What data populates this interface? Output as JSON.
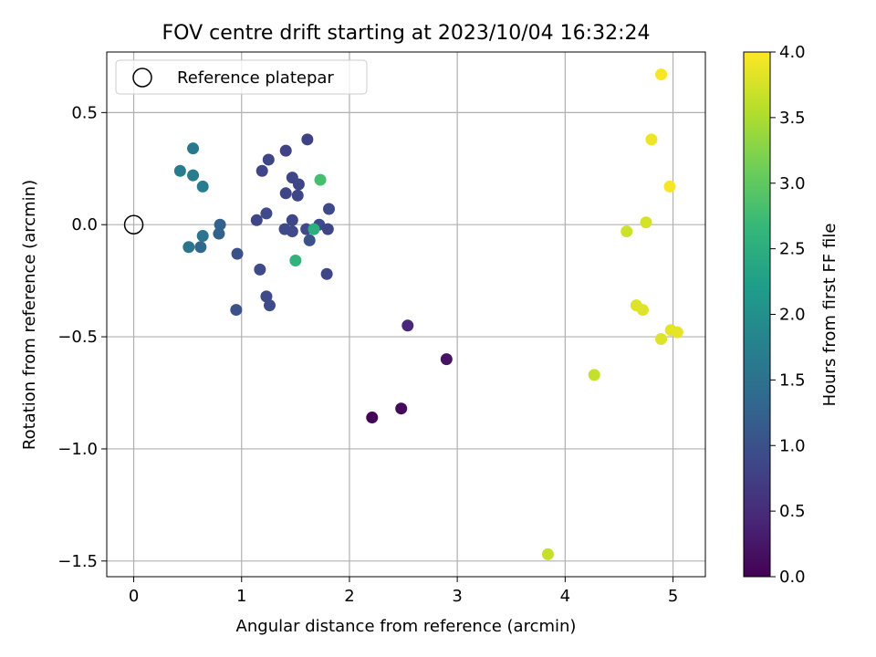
{
  "chart_data": {
    "type": "scatter",
    "title": "FOV centre drift starting at 2023/10/04 16:32:24",
    "xlabel": "Angular distance from reference (arcmin)",
    "ylabel": "Rotation from reference (arcmin)",
    "xlim": [
      -0.25,
      5.3
    ],
    "ylim": [
      -1.57,
      0.77
    ],
    "xticks": [
      0,
      1,
      2,
      3,
      4,
      5
    ],
    "xtick_labels": [
      "0",
      "1",
      "2",
      "3",
      "4",
      "5"
    ],
    "yticks": [
      -1.5,
      -1.0,
      -0.5,
      0.0,
      0.5
    ],
    "ytick_labels": [
      "−1.5",
      "−1.0",
      "−0.5",
      "0.0",
      "0.5"
    ],
    "grid": true,
    "legend": {
      "placement": "top-left",
      "entries": [
        "Reference platepar"
      ]
    },
    "reference_point": {
      "label": "Reference platepar",
      "x": 0.0,
      "y": 0.0
    },
    "colorbar": {
      "label": "Hours from first FF file",
      "colormap": "viridis",
      "range": [
        0.0,
        4.0
      ],
      "ticks": [
        0.0,
        0.5,
        1.0,
        1.5,
        2.0,
        2.5,
        3.0,
        3.5,
        4.0
      ],
      "tick_labels": [
        "0.0",
        "0.5",
        "1.0",
        "1.5",
        "2.0",
        "2.5",
        "3.0",
        "3.5",
        "4.0"
      ]
    },
    "points": [
      {
        "x": 2.21,
        "y": -0.86,
        "c": 0.05
      },
      {
        "x": 2.48,
        "y": -0.82,
        "c": 0.1
      },
      {
        "x": 2.9,
        "y": -0.6,
        "c": 0.2
      },
      {
        "x": 2.54,
        "y": -0.45,
        "c": 0.45
      },
      {
        "x": 1.61,
        "y": 0.38,
        "c": 0.8
      },
      {
        "x": 1.41,
        "y": 0.33,
        "c": 0.8
      },
      {
        "x": 1.25,
        "y": 0.29,
        "c": 0.85
      },
      {
        "x": 1.19,
        "y": 0.24,
        "c": 0.85
      },
      {
        "x": 1.47,
        "y": 0.21,
        "c": 0.85
      },
      {
        "x": 1.53,
        "y": 0.18,
        "c": 0.85
      },
      {
        "x": 1.41,
        "y": 0.14,
        "c": 0.85
      },
      {
        "x": 1.52,
        "y": 0.13,
        "c": 0.85
      },
      {
        "x": 1.81,
        "y": 0.07,
        "c": 0.9
      },
      {
        "x": 1.23,
        "y": 0.05,
        "c": 0.9
      },
      {
        "x": 1.14,
        "y": 0.02,
        "c": 0.85
      },
      {
        "x": 1.47,
        "y": 0.02,
        "c": 0.85
      },
      {
        "x": 1.72,
        "y": 0.0,
        "c": 0.9
      },
      {
        "x": 1.4,
        "y": -0.02,
        "c": 0.9
      },
      {
        "x": 1.47,
        "y": -0.03,
        "c": 0.9
      },
      {
        "x": 1.6,
        "y": -0.02,
        "c": 0.9
      },
      {
        "x": 1.8,
        "y": -0.02,
        "c": 0.85
      },
      {
        "x": 1.63,
        "y": -0.07,
        "c": 1.0
      },
      {
        "x": 0.96,
        "y": -0.13,
        "c": 1.0
      },
      {
        "x": 1.17,
        "y": -0.2,
        "c": 0.9
      },
      {
        "x": 1.79,
        "y": -0.22,
        "c": 0.85
      },
      {
        "x": 1.23,
        "y": -0.32,
        "c": 0.9
      },
      {
        "x": 1.26,
        "y": -0.36,
        "c": 0.9
      },
      {
        "x": 0.95,
        "y": -0.38,
        "c": 1.0
      },
      {
        "x": 0.8,
        "y": 0.0,
        "c": 1.25
      },
      {
        "x": 0.79,
        "y": -0.04,
        "c": 1.25
      },
      {
        "x": 0.62,
        "y": -0.1,
        "c": 1.35
      },
      {
        "x": 0.51,
        "y": -0.1,
        "c": 1.55
      },
      {
        "x": 0.64,
        "y": -0.05,
        "c": 1.55
      },
      {
        "x": 0.55,
        "y": 0.34,
        "c": 1.6
      },
      {
        "x": 0.43,
        "y": 0.24,
        "c": 1.65
      },
      {
        "x": 0.55,
        "y": 0.22,
        "c": 1.65
      },
      {
        "x": 0.64,
        "y": 0.17,
        "c": 1.65
      },
      {
        "x": 1.73,
        "y": 0.2,
        "c": 2.8
      },
      {
        "x": 1.67,
        "y": -0.02,
        "c": 2.5
      },
      {
        "x": 1.5,
        "y": -0.16,
        "c": 2.6
      },
      {
        "x": 3.84,
        "y": -1.47,
        "c": 3.65
      },
      {
        "x": 4.27,
        "y": -0.67,
        "c": 3.65
      },
      {
        "x": 4.57,
        "y": -0.03,
        "c": 3.7
      },
      {
        "x": 4.75,
        "y": 0.01,
        "c": 3.75
      },
      {
        "x": 4.66,
        "y": -0.36,
        "c": 3.8
      },
      {
        "x": 4.72,
        "y": -0.38,
        "c": 3.8
      },
      {
        "x": 4.89,
        "y": -0.51,
        "c": 3.8
      },
      {
        "x": 4.98,
        "y": -0.47,
        "c": 3.85
      },
      {
        "x": 5.04,
        "y": -0.48,
        "c": 3.85
      },
      {
        "x": 4.8,
        "y": 0.38,
        "c": 3.9
      },
      {
        "x": 4.97,
        "y": 0.17,
        "c": 3.95
      },
      {
        "x": 4.89,
        "y": 0.67,
        "c": 3.97
      }
    ]
  }
}
